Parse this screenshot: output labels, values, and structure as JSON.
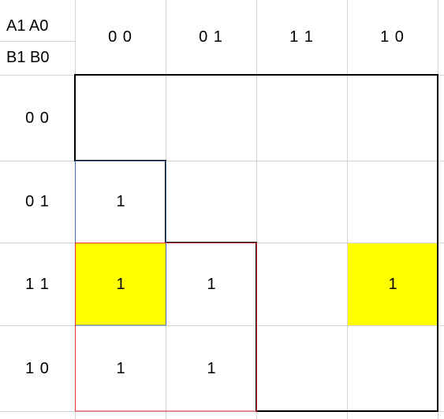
{
  "kmap": {
    "row_var_label": "A1 A0",
    "col_var_label": "B1 B0",
    "column_headers": [
      "0 0",
      "0 1",
      "1 1",
      "1 0"
    ],
    "row_headers": [
      "0 0",
      "0 1",
      "1 1",
      "1 0"
    ],
    "cells": [
      [
        "",
        "",
        "",
        ""
      ],
      [
        "1",
        "",
        "",
        ""
      ],
      [
        "1",
        "1",
        "",
        "1"
      ],
      [
        "1",
        "1",
        "",
        ""
      ]
    ]
  },
  "colors": {
    "highlight": "#ffff00",
    "group_red": "#e03131",
    "group_blue": "#4a6fb5",
    "outline": "#000000",
    "gridline": "#d4d4d4"
  }
}
